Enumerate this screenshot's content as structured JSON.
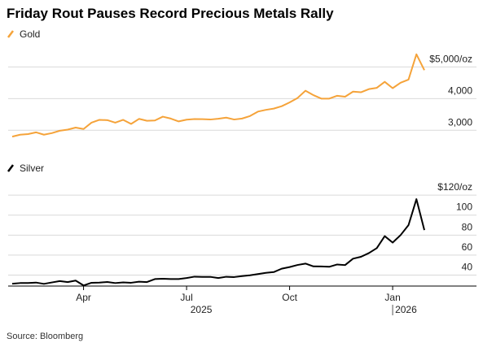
{
  "title": "Friday Rout Pauses Record Precious Metals Rally",
  "source": "Source: Bloomberg",
  "chart_data": [
    {
      "type": "line",
      "series": [
        {
          "name": "Gold",
          "color": "#f5a33a",
          "values": [
            2800,
            2860,
            2880,
            2935,
            2860,
            2910,
            2985,
            3020,
            3085,
            3040,
            3240,
            3330,
            3320,
            3240,
            3330,
            3200,
            3360,
            3300,
            3310,
            3430,
            3370,
            3280,
            3335,
            3355,
            3350,
            3340,
            3365,
            3400,
            3340,
            3370,
            3450,
            3590,
            3645,
            3685,
            3760,
            3880,
            4020,
            4250,
            4110,
            4000,
            4000,
            4090,
            4060,
            4220,
            4200,
            4300,
            4340,
            4530,
            4330,
            4500,
            4600,
            5400,
            4900
          ]
        }
      ],
      "ylim": [
        2700,
        5600
      ],
      "yticks": [
        {
          "value": 3000,
          "label": "3,000"
        },
        {
          "value": 4000,
          "label": "4,000"
        },
        {
          "value": 5000,
          "label": "$5,000/oz"
        }
      ],
      "grid": true
    },
    {
      "type": "line",
      "series": [
        {
          "name": "Silver",
          "color": "#000000",
          "values": [
            31.3,
            32,
            32.1,
            32.5,
            31.2,
            32.6,
            34,
            33,
            34.5,
            29.6,
            32.3,
            32.5,
            33.1,
            32,
            32.7,
            32.3,
            33.4,
            33,
            36,
            36.3,
            36,
            36,
            37,
            38.4,
            38.2,
            38.2,
            37,
            38.3,
            38,
            39,
            39.8,
            41,
            42.2,
            43,
            46.4,
            48,
            50.1,
            51.5,
            48.7,
            48.6,
            48.3,
            50.6,
            50,
            56.4,
            58.3,
            62,
            67,
            79,
            72.5,
            80,
            90,
            116,
            85
          ]
        }
      ],
      "categories": [
        null,
        null,
        null,
        null,
        null,
        null,
        null,
        null,
        null,
        "Apr",
        null,
        null,
        null,
        null,
        null,
        null,
        null,
        null,
        null,
        null,
        null,
        null,
        "Jul",
        null,
        null,
        null,
        null,
        null,
        null,
        null,
        null,
        null,
        null,
        null,
        null,
        "Oct",
        null,
        null,
        null,
        null,
        null,
        null,
        null,
        null,
        null,
        null,
        null,
        null,
        "Jan",
        null,
        null,
        null,
        null
      ],
      "year_labels": [
        "2025",
        "2026"
      ],
      "ylim": [
        29,
        125
      ],
      "yticks": [
        40,
        60,
        80,
        100,
        {
          "value": 120,
          "label": "$120/oz"
        }
      ],
      "grid": true
    }
  ]
}
